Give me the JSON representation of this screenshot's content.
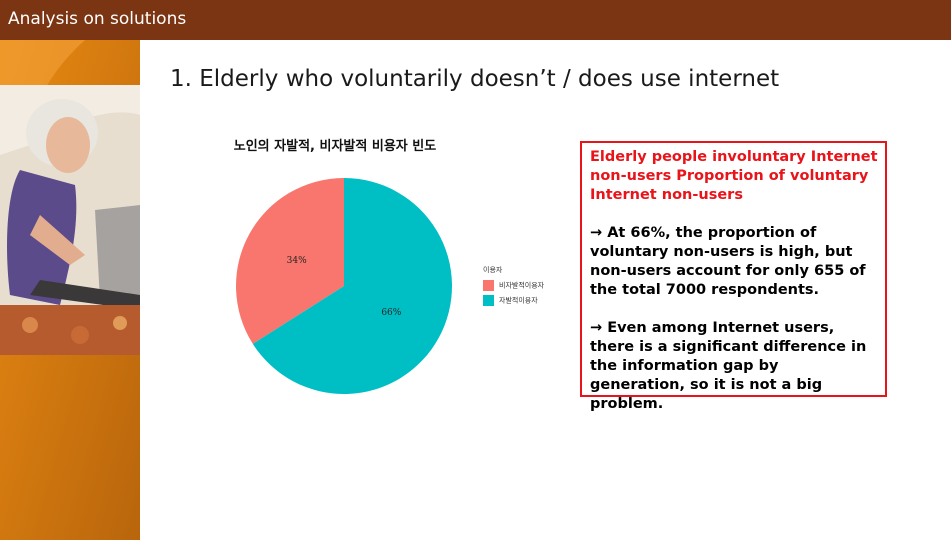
{
  "header": {
    "title": "Analysis on solutions"
  },
  "slide_title": "1. Elderly who voluntarily doesn’t / does use internet",
  "chart_data": {
    "type": "pie",
    "title": "노인의 자발적, 비자발적 비용자 빈도",
    "legend_title": "이용자",
    "legend_position": "right",
    "categories": [
      "비자발적이용자",
      "자발적이용자"
    ],
    "values": [
      34,
      66
    ],
    "labels": [
      "34%",
      "66%"
    ],
    "colors": [
      "#f8766d",
      "#00bfc4"
    ]
  },
  "info_box": {
    "heading": "Elderly people involuntary Internet non-users Proportion of voluntary Internet non-users",
    "paragraph1": "→ At 66%, the proportion of voluntary non-users is high, but non-users account for only 655 of the total 7000 respondents.",
    "paragraph2": "→ Even among Internet users, there is a significant difference in the information gap by generation, so it is not a big problem."
  },
  "colors": {
    "header_bg": "#7b3512",
    "accent_orange": "#c8700e",
    "box_border": "#e8141a"
  }
}
